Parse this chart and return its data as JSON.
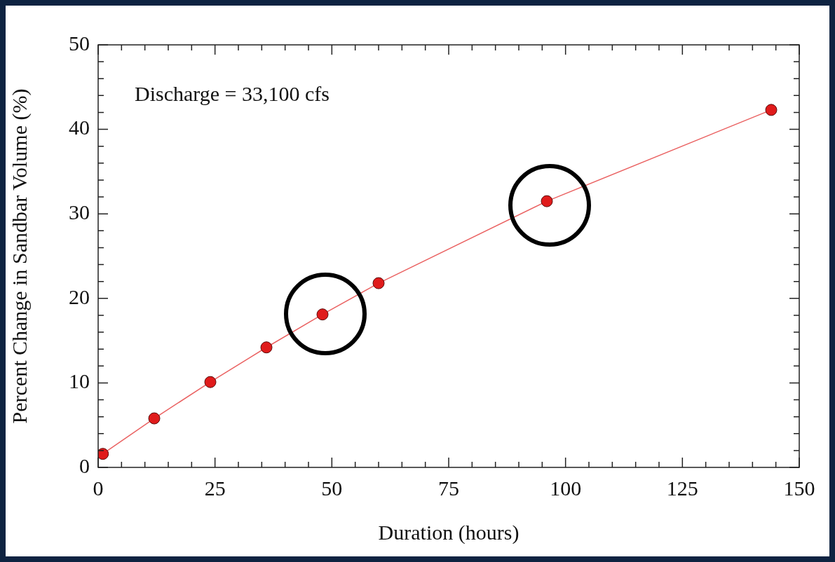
{
  "chart_data": {
    "type": "line",
    "xlabel": "Duration (hours)",
    "ylabel": "Percent Change in Sandbar Volume (%)",
    "annotations": [
      "Discharge = 33,100 cfs"
    ],
    "x": [
      1,
      12,
      24,
      36,
      48,
      60,
      96,
      144
    ],
    "series": [
      {
        "color": "#e01b1b",
        "values": [
          1.6,
          5.8,
          10.1,
          14.2,
          18.1,
          21.8,
          31.5,
          42.3
        ]
      }
    ],
    "xlim": [
      0,
      150
    ],
    "xticks": [
      0,
      {
        "value": 5,
        "label": null
      },
      {
        "value": 10,
        "label": null
      },
      {
        "value": 15,
        "label": null
      },
      {
        "value": 20,
        "label": null
      },
      25,
      {
        "value": 30,
        "label": null
      },
      {
        "value": 35,
        "label": null
      },
      {
        "value": 40,
        "label": null
      },
      {
        "value": 45,
        "label": null
      },
      50,
      {
        "value": 55,
        "label": null
      },
      {
        "value": 60,
        "label": null
      },
      {
        "value": 65,
        "label": null
      },
      {
        "value": 70,
        "label": null
      },
      75,
      {
        "value": 80,
        "label": null
      },
      {
        "value": 85,
        "label": null
      },
      {
        "value": 90,
        "label": null
      },
      {
        "value": 95,
        "label": null
      },
      100,
      {
        "value": 105,
        "label": null
      },
      {
        "value": 110,
        "label": null
      },
      {
        "value": 115,
        "label": null
      },
      {
        "value": 120,
        "label": null
      },
      125,
      {
        "value": 130,
        "label": null
      },
      {
        "value": 135,
        "label": null
      },
      {
        "value": 140,
        "label": null
      },
      {
        "value": 145,
        "label": null
      },
      150
    ],
    "ylim": [
      0,
      50
    ],
    "yticks": [
      0,
      {
        "value": 2,
        "label": null
      },
      {
        "value": 4,
        "label": null
      },
      {
        "value": 6,
        "label": null
      },
      {
        "value": 8,
        "label": null
      },
      10,
      {
        "value": 12,
        "label": null
      },
      {
        "value": 14,
        "label": null
      },
      {
        "value": 16,
        "label": null
      },
      {
        "value": 18,
        "label": null
      },
      20,
      {
        "value": 22,
        "label": null
      },
      {
        "value": 24,
        "label": null
      },
      {
        "value": 26,
        "label": null
      },
      {
        "value": 28,
        "label": null
      },
      30,
      {
        "value": 32,
        "label": null
      },
      {
        "value": 34,
        "label": null
      },
      {
        "value": 36,
        "label": null
      },
      {
        "value": 38,
        "label": null
      },
      40,
      {
        "value": 42,
        "label": null
      },
      {
        "value": 44,
        "label": null
      },
      {
        "value": 46,
        "label": null
      },
      {
        "value": 48,
        "label": null
      },
      50
    ],
    "grid": false,
    "legend": false,
    "marker": "circle",
    "line_style": "solid"
  }
}
